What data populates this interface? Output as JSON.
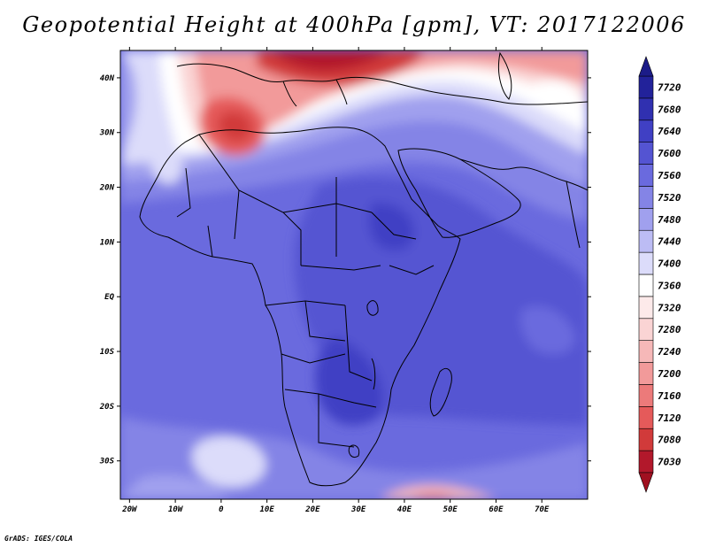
{
  "title": "Geopotential Height at 400hPa [gpm], VT: 2017122006",
  "credit": "GrADS: IGES/COLA",
  "lon_ticks": [
    "20W",
    "10W",
    "0",
    "10E",
    "20E",
    "30E",
    "40E",
    "50E",
    "60E",
    "70E"
  ],
  "lon_values": [
    -20,
    -10,
    0,
    10,
    20,
    30,
    40,
    50,
    60,
    70
  ],
  "lat_ticks": [
    "40N",
    "30N",
    "20N",
    "10N",
    "EQ",
    "10S",
    "20S",
    "30S"
  ],
  "lat_values": [
    40,
    30,
    20,
    10,
    0,
    -10,
    -20,
    -30
  ],
  "map_extent": {
    "lon_min": -22,
    "lon_max": 80,
    "lat_min": -37,
    "lat_max": 45
  },
  "colorbar": {
    "labels": [
      "7030",
      "7080",
      "7120",
      "7160",
      "7200",
      "7240",
      "7280",
      "7320",
      "7360",
      "7400",
      "7440",
      "7480",
      "7520",
      "7560",
      "7600",
      "7640",
      "7680",
      "7720"
    ],
    "colors": [
      "#b2182b",
      "#d13a3a",
      "#e55a5a",
      "#ec7a7a",
      "#f29a9a",
      "#f6b8b8",
      "#fad4d4",
      "#fdeaea",
      "#ffffff",
      "#dcdcfa",
      "#bcbcf4",
      "#a0a0ee",
      "#8484e6",
      "#6a6ade",
      "#5454d2",
      "#4040c4",
      "#3030b0",
      "#22229a"
    ],
    "bottom_arrow_color": "#a01020",
    "top_arrow_color": "#1c1c88"
  }
}
